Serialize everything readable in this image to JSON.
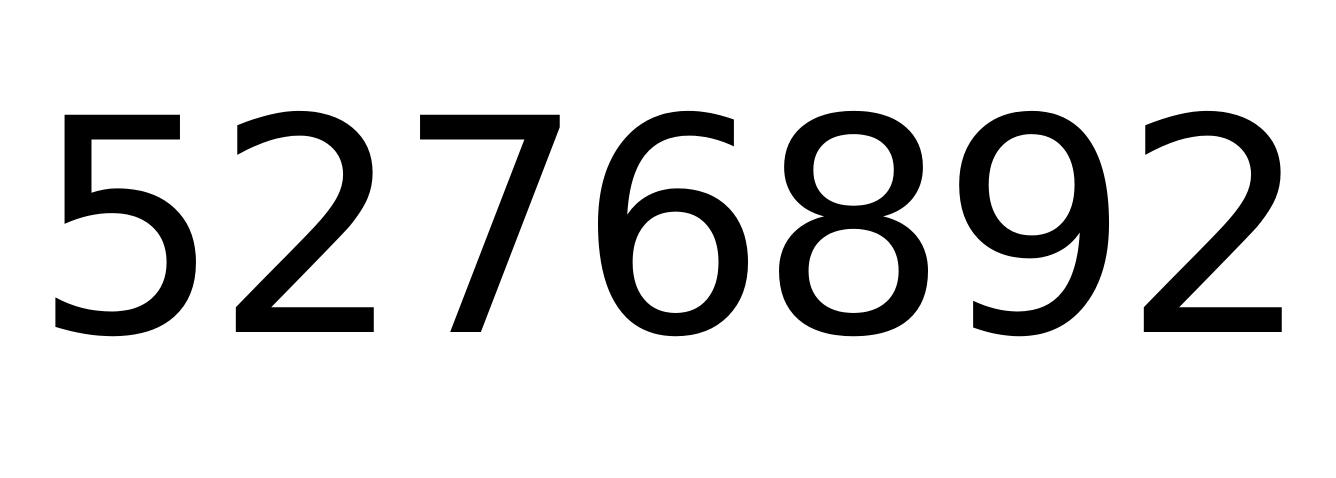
{
  "content": {
    "number": "5276892"
  },
  "colors": {
    "background": "#ffffff",
    "text": "#000000"
  }
}
